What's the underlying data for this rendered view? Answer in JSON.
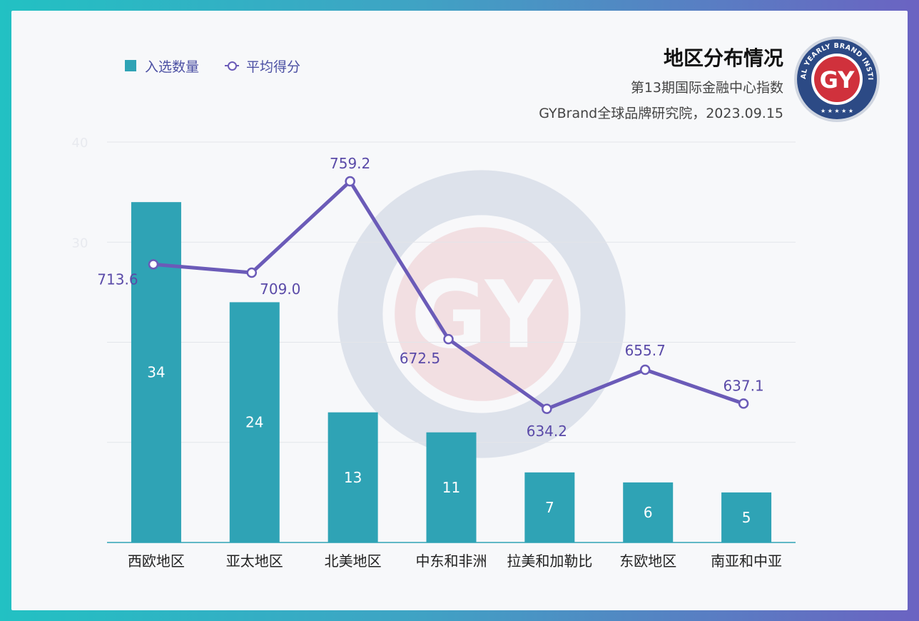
{
  "chart_data": {
    "type": "bar",
    "title": "地区分布情况",
    "subtitle_lines": [
      "第13期国际金融中心指数",
      "GYBrand全球品牌研究院，2023.09.15"
    ],
    "categories": [
      "西欧地区",
      "亚太地区",
      "北美地区",
      "中东和非洲",
      "拉美和加勒比",
      "东欧地区",
      "南亚和中亚"
    ],
    "ylim": [
      0,
      40
    ],
    "y_ticks": [
      "40",
      "30"
    ],
    "grid": true,
    "legend_position": "top-left",
    "series": [
      {
        "name": "入选数量",
        "type": "bar",
        "color": "#2fa3b5",
        "values": [
          34,
          24,
          13,
          11,
          7,
          6,
          5
        ]
      },
      {
        "name": "平均得分",
        "type": "line",
        "color": "#6b5bb8",
        "values": [
          713.6,
          709.0,
          759.2,
          672.5,
          634.2,
          655.7,
          637.1
        ]
      }
    ]
  },
  "logo": {
    "initials": "GY",
    "ring_text": "GLOBAL YEARLY BRAND INSTITUTE"
  },
  "colors": {
    "bar": "#2fa3b5",
    "line": "#6b5bb8",
    "logo_red": "#d0313c",
    "logo_navy": "#2c4a85"
  }
}
